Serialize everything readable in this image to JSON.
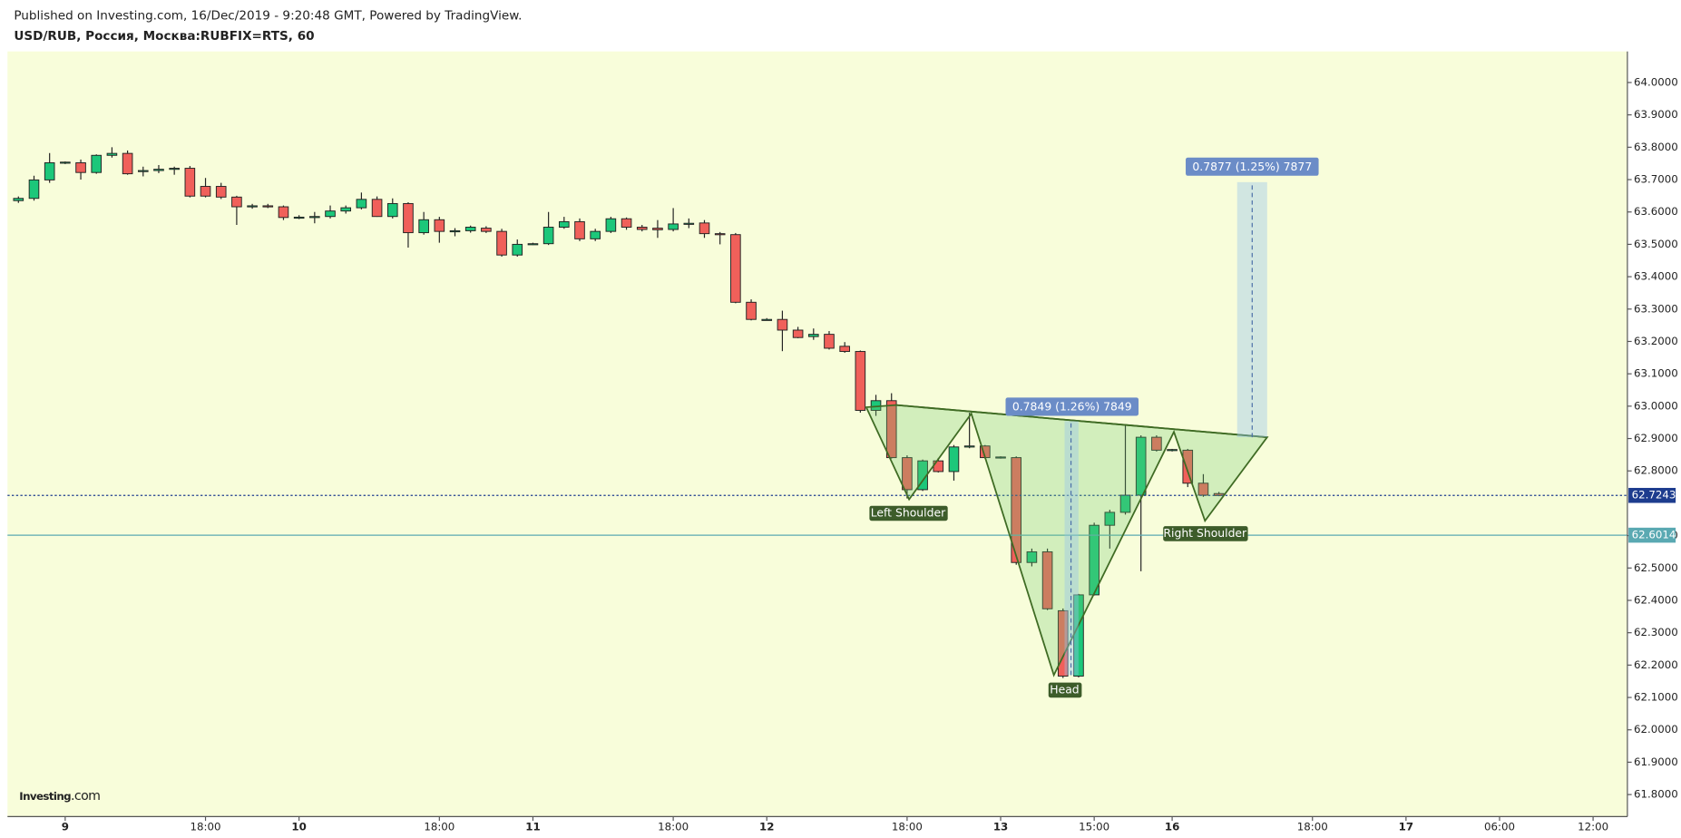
{
  "header": {
    "published": "Published on Investing.com, 16/Dec/2019 - 9:20:48 GMT, Powered by TradingView.",
    "symbol": "USD/RUB, Россия, Москва:RUBFIX=RTS, 60"
  },
  "logo": {
    "name": "Investing",
    "suffix": ".com"
  },
  "chart_data": {
    "type": "candlestick",
    "up_color": "#1cc77a",
    "down_color": "#f0605a",
    "outline_color": "#222222",
    "open": [
      63.635,
      63.642,
      63.699,
      63.752,
      63.752,
      63.722,
      63.775,
      63.781,
      63.725,
      63.728,
      63.732,
      63.735,
      63.679,
      63.679,
      63.646,
      63.616,
      63.619,
      63.616,
      63.583,
      63.584,
      63.586,
      63.603,
      63.613,
      63.639,
      63.586,
      63.626,
      63.536,
      63.576,
      63.54,
      63.542,
      63.55,
      63.54,
      63.467,
      63.5,
      63.502,
      63.553,
      63.57,
      63.517,
      63.54,
      63.579,
      63.553,
      63.55,
      63.546,
      63.563,
      63.566,
      63.533,
      63.53,
      63.321,
      63.268,
      63.268,
      63.235,
      63.215,
      63.222,
      63.185,
      63.169,
      62.987,
      63.017,
      62.841,
      62.742,
      62.831,
      62.798,
      62.874,
      62.877,
      62.841,
      62.841,
      62.517,
      62.55,
      62.368,
      62.166,
      62.417,
      62.632,
      62.672,
      62.725,
      62.904,
      62.864,
      62.864,
      62.762,
      62.73
    ],
    "high": [
      63.648,
      63.712,
      63.782,
      63.756,
      63.762,
      63.778,
      63.8,
      63.79,
      63.74,
      63.745,
      63.74,
      63.742,
      63.705,
      63.69,
      63.65,
      63.625,
      63.625,
      63.62,
      63.59,
      63.6,
      63.62,
      63.62,
      63.66,
      63.648,
      63.642,
      63.63,
      63.6,
      63.585,
      63.55,
      63.558,
      63.556,
      63.548,
      63.515,
      63.505,
      63.6,
      63.585,
      63.58,
      63.548,
      63.585,
      63.583,
      63.56,
      63.575,
      63.612,
      63.58,
      63.575,
      63.538,
      63.535,
      63.33,
      63.272,
      63.295,
      63.245,
      63.24,
      63.232,
      63.198,
      63.172,
      63.035,
      63.04,
      62.848,
      62.835,
      62.84,
      62.88,
      62.98,
      62.88,
      62.845,
      62.845,
      62.56,
      62.56,
      62.375,
      62.42,
      62.64,
      62.68,
      62.94,
      62.91,
      62.91,
      62.868,
      62.868,
      62.79,
      62.735
    ],
    "low": [
      63.628,
      63.635,
      63.69,
      63.748,
      63.7,
      63.718,
      63.768,
      63.715,
      63.71,
      63.72,
      63.715,
      63.645,
      63.645,
      63.64,
      63.56,
      63.61,
      63.612,
      63.575,
      63.578,
      63.565,
      63.58,
      63.595,
      63.608,
      63.585,
      63.58,
      63.49,
      63.53,
      63.505,
      63.525,
      63.536,
      63.535,
      63.462,
      63.462,
      63.498,
      63.498,
      63.548,
      63.51,
      63.51,
      63.535,
      63.545,
      63.54,
      63.52,
      63.54,
      63.55,
      63.52,
      63.5,
      63.318,
      63.265,
      63.265,
      63.17,
      63.21,
      63.205,
      63.175,
      63.165,
      62.98,
      62.97,
      62.838,
      62.715,
      62.738,
      62.795,
      62.77,
      62.87,
      62.838,
      62.838,
      62.51,
      62.505,
      62.37,
      62.16,
      62.162,
      62.415,
      62.56,
      62.665,
      62.49,
      62.86,
      62.86,
      62.75,
      62.72,
      62.722
    ],
    "close": [
      63.642,
      63.699,
      63.752,
      63.754,
      63.722,
      63.775,
      63.781,
      63.718,
      63.728,
      63.732,
      63.735,
      63.649,
      63.649,
      63.646,
      63.616,
      63.619,
      63.616,
      63.583,
      63.584,
      63.586,
      63.603,
      63.613,
      63.639,
      63.586,
      63.626,
      63.536,
      63.576,
      63.54,
      63.542,
      63.553,
      63.54,
      63.467,
      63.5,
      63.502,
      63.553,
      63.57,
      63.517,
      63.54,
      63.579,
      63.553,
      63.546,
      63.545,
      63.563,
      63.565,
      63.533,
      63.53,
      63.321,
      63.268,
      63.268,
      63.235,
      63.212,
      63.222,
      63.179,
      63.169,
      62.987,
      63.017,
      62.841,
      62.742,
      62.831,
      62.798,
      62.874,
      62.877,
      62.841,
      62.843,
      62.517,
      62.55,
      62.374,
      62.166,
      62.417,
      62.632,
      62.672,
      62.725,
      62.904,
      62.864,
      62.866,
      62.762,
      62.725,
      62.724
    ],
    "xlim": [
      -0.7,
      103.2
    ],
    "ylim": [
      61.732,
      64.096
    ],
    "yticks": [
      {
        "value": 64,
        "label": "64.0000"
      },
      {
        "value": 63.9,
        "label": "63.9000"
      },
      {
        "value": 63.8,
        "label": "63.8000"
      },
      {
        "value": 63.7,
        "label": "63.7000"
      },
      {
        "value": 63.6,
        "label": "63.6000"
      },
      {
        "value": 63.5,
        "label": "63.5000"
      },
      {
        "value": 63.4,
        "label": "63.4000"
      },
      {
        "value": 63.3,
        "label": "63.3000"
      },
      {
        "value": 63.2,
        "label": "63.2000"
      },
      {
        "value": 63.1,
        "label": "63.1000"
      },
      {
        "value": 63,
        "label": "63.0000"
      },
      {
        "value": 62.9,
        "label": "62.9000"
      },
      {
        "value": 62.8,
        "label": "62.8000"
      },
      {
        "value": 62.6,
        "label": "62.6000"
      },
      {
        "value": 62.5,
        "label": "62.5000"
      },
      {
        "value": 62.4,
        "label": "62.4000"
      },
      {
        "value": 62.3,
        "label": "62.3000"
      },
      {
        "value": 62.2,
        "label": "62.2000"
      },
      {
        "value": 62.1,
        "label": "62.1000"
      },
      {
        "value": 62,
        "label": "62.0000"
      },
      {
        "value": 61.9,
        "label": "61.9000"
      },
      {
        "value": 61.8,
        "label": "61.8000"
      }
    ],
    "xticks": [
      {
        "value": 3,
        "label": "9",
        "bold": true
      },
      {
        "value": 12,
        "label": "18:00"
      },
      {
        "value": 18,
        "label": "10",
        "bold": true
      },
      {
        "value": 27,
        "label": "18:00"
      },
      {
        "value": 33,
        "label": "11",
        "bold": true
      },
      {
        "value": 42,
        "label": "18:00"
      },
      {
        "value": 48,
        "label": "12",
        "bold": true
      },
      {
        "value": 57,
        "label": "18:00"
      },
      {
        "value": 63,
        "label": "13",
        "bold": true
      },
      {
        "value": 69,
        "label": "15:00"
      },
      {
        "value": 74,
        "label": "16",
        "bold": true
      },
      {
        "value": 83,
        "label": "18:00"
      },
      {
        "value": 89,
        "label": "17",
        "bold": true
      },
      {
        "value": 95,
        "label": "06:00"
      },
      {
        "value": 101,
        "label": "12:00"
      }
    ],
    "price_lines": [
      {
        "value": 62.7243,
        "color": "#1d3c8e",
        "dashed": true
      },
      {
        "value": 62.6014,
        "color": "#5aa9b2",
        "dashed": false
      }
    ],
    "annotations": {
      "left_shoulder": "Left Shoulder",
      "head": "Head",
      "right_shoulder": "Right Shoulder",
      "measure_1": "0.7849 (1.26%) 7849",
      "measure_2": "0.7877 (1.25%) 7877"
    }
  }
}
